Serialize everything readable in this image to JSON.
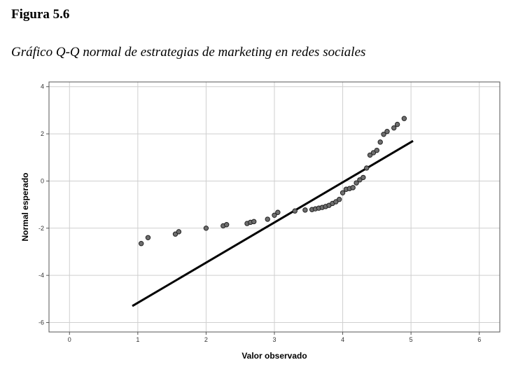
{
  "figure": {
    "label": "Figura 5.6",
    "title": "Gráfico Q-Q normal de estrategias de marketing en redes sociales"
  },
  "chart_data": {
    "type": "scatter",
    "xlabel": "Valor observado",
    "ylabel": "Normal esperado",
    "xlim": [
      -0.3,
      6.3
    ],
    "ylim": [
      -6.4,
      4.2
    ],
    "xticks": [
      0,
      1,
      2,
      3,
      4,
      5,
      6
    ],
    "yticks": [
      4,
      2,
      0,
      -2,
      -4,
      -6
    ],
    "grid": true,
    "colors": {
      "point_fill": "#6e6e6e",
      "point_stroke": "#222222",
      "line": "#000000",
      "grid": "#cfcfcf"
    },
    "reference_line": {
      "x": [
        0.92,
        5.03
      ],
      "y": [
        -5.3,
        1.7
      ]
    },
    "points": [
      [
        1.05,
        -2.65
      ],
      [
        1.15,
        -2.4
      ],
      [
        1.55,
        -2.25
      ],
      [
        1.6,
        -2.15
      ],
      [
        2.0,
        -2.0
      ],
      [
        2.25,
        -1.9
      ],
      [
        2.3,
        -1.85
      ],
      [
        2.6,
        -1.8
      ],
      [
        2.65,
        -1.75
      ],
      [
        2.7,
        -1.72
      ],
      [
        2.9,
        -1.62
      ],
      [
        3.0,
        -1.45
      ],
      [
        3.05,
        -1.33
      ],
      [
        3.3,
        -1.27
      ],
      [
        3.45,
        -1.23
      ],
      [
        3.55,
        -1.21
      ],
      [
        3.6,
        -1.18
      ],
      [
        3.65,
        -1.15
      ],
      [
        3.7,
        -1.12
      ],
      [
        3.75,
        -1.08
      ],
      [
        3.8,
        -1.03
      ],
      [
        3.85,
        -0.95
      ],
      [
        3.9,
        -0.88
      ],
      [
        3.95,
        -0.78
      ],
      [
        4.0,
        -0.5
      ],
      [
        4.05,
        -0.35
      ],
      [
        4.1,
        -0.32
      ],
      [
        4.15,
        -0.28
      ],
      [
        4.2,
        -0.08
      ],
      [
        4.25,
        0.05
      ],
      [
        4.3,
        0.15
      ],
      [
        4.35,
        0.55
      ],
      [
        4.4,
        1.1
      ],
      [
        4.45,
        1.2
      ],
      [
        4.5,
        1.3
      ],
      [
        4.55,
        1.65
      ],
      [
        4.6,
        1.98
      ],
      [
        4.65,
        2.1
      ],
      [
        4.75,
        2.25
      ],
      [
        4.8,
        2.4
      ],
      [
        4.9,
        2.65
      ]
    ]
  }
}
